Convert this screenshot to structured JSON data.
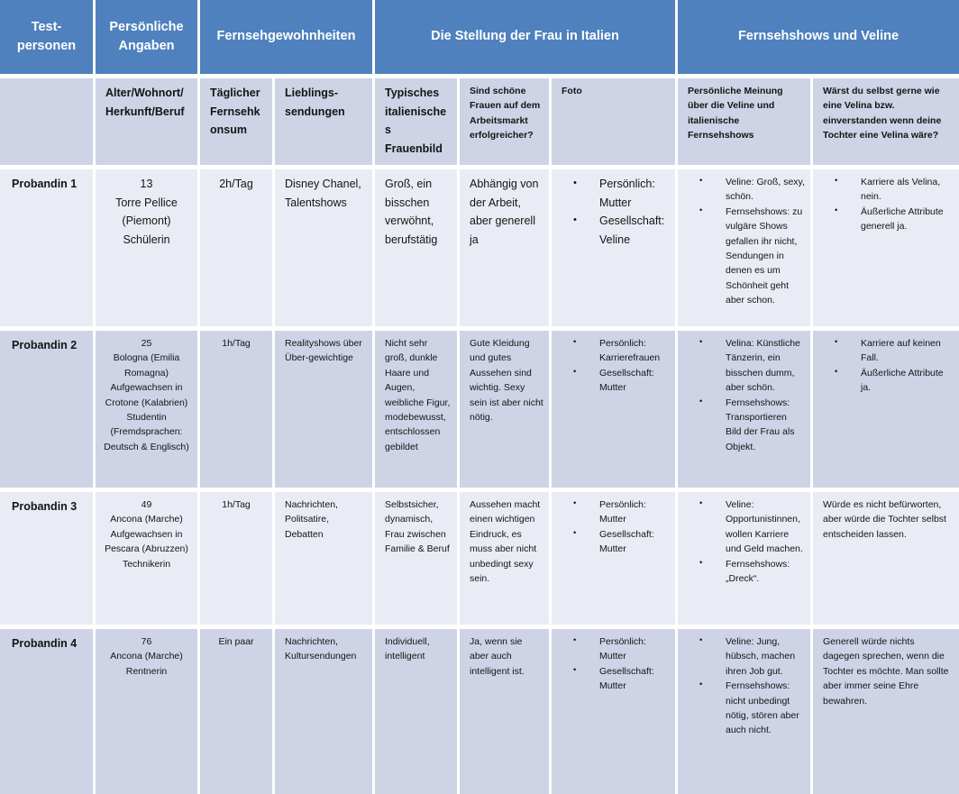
{
  "colors": {
    "header_bg": "#4E81BD",
    "header_text": "#FFFFFF",
    "band_dark": "#CED4E6",
    "band_light": "#E9ECF4",
    "body_text": "#141414",
    "gutter": "#FFFFFF"
  },
  "table": {
    "header_groups": [
      {
        "label": "Test-personen",
        "span": 1
      },
      {
        "label": "Persönliche Angaben",
        "span": 1
      },
      {
        "label": "Fernsehgewohnheiten",
        "span": 2
      },
      {
        "label": "Die Stellung der Frau in Italien",
        "span": 3
      },
      {
        "label": "Fernsehshows und Veline",
        "span": 2
      }
    ],
    "subheaders": [
      "",
      "Alter/Wohnort/ Herkunft/Beruf",
      "Täglicher Fernsehkonsum",
      "Lieblings-sendungen",
      "Typisches italienisches Frauenbild",
      "Sind schöne Frauen auf dem Arbeitsmarkt erfolgreicher?",
      "Foto",
      "Persönliche Meinung über die Veline und italienische Fernsehshows",
      "Wärst du selbst gerne wie eine Velina bzw. einverstanden wenn deine Tochter eine Velina wäre?"
    ],
    "rows": [
      {
        "name": "Probandin 1",
        "personal": "13\nTorre Pellice (Piemont)\nSchülerin",
        "tv_daily": "2h/Tag",
        "favorites": "Disney Chanel, Talentshows",
        "frauenbild": "Groß, ein bisschen verwöhnt, berufstätig",
        "arbeitsmarkt": "Abhängig von der Arbeit, aber generell ja",
        "foto": [
          "Persönlich: Mutter",
          "Gesellschaft: Veline"
        ],
        "meinung": [
          "Veline: Groß, sexy, schön.",
          "Fernsehshows: zu vulgäre Shows gefallen ihr nicht, Sendungen in denen es um Schönheit geht aber schon."
        ],
        "velina": [
          "Karriere als Velina, nein.",
          "Äußerliche Attribute generell ja."
        ]
      },
      {
        "name": "Probandin 2",
        "personal": "25\nBologna (Emilia Romagna)\nAufgewachsen in Crotone (Kalabrien)\nStudentin (Fremdsprachen: Deutsch & Englisch)",
        "tv_daily": "1h/Tag",
        "favorites": "Realityshows über Über-gewichtige",
        "frauenbild": "Nicht sehr groß, dunkle Haare und Augen, weibliche Figur, modebewusst, entschlossen gebildet",
        "arbeitsmarkt": "Gute Kleidung und gutes Aussehen sind wichtig. Sexy sein ist aber nicht nötig.",
        "foto": [
          "Persönlich: Karrierefrauen",
          "Gesellschaft: Mutter"
        ],
        "meinung": [
          "Velina: Künstliche Tänzerin, ein bisschen dumm, aber schön.",
          "Fernsehshows: Transportieren Bild der Frau als Objekt."
        ],
        "velina": [
          "Karriere auf keinen Fall.",
          "Äußerliche Attribute ja."
        ]
      },
      {
        "name": "Probandin 3",
        "personal": "49\nAncona (Marche)\nAufgewachsen in Pescara (Abruzzen)\nTechnikerin",
        "tv_daily": "1h/Tag",
        "favorites": "Nachrichten, Politsatire, Debatten",
        "frauenbild": "Selbstsicher, dynamisch, Frau zwischen Familie & Beruf",
        "arbeitsmarkt": "Aussehen macht einen wichtigen Eindruck, es muss aber nicht unbedingt sexy sein.",
        "foto": [
          "Persönlich: Mutter",
          "Gesellschaft: Mutter"
        ],
        "meinung": [
          "Veline: Opportunistinnen, wollen Karriere und Geld machen.",
          "Fernsehshows: „Dreck“."
        ],
        "velina": "Würde es nicht befürworten, aber würde die Tochter selbst entscheiden lassen."
      },
      {
        "name": "Probandin 4",
        "personal": "76\nAncona (Marche)\nRentnerin",
        "tv_daily": "Ein paar",
        "favorites": "Nachrichten, Kultursendungen",
        "frauenbild": "Individuell, intelligent",
        "arbeitsmarkt": "Ja, wenn sie aber auch intelligent ist.",
        "foto": [
          "Persönlich: Mutter",
          "Gesellschaft: Mutter"
        ],
        "meinung": [
          "Veline: Jung, hübsch, machen ihren Job gut.",
          "Fernsehshows: nicht unbedingt nötig, stören aber auch nicht."
        ],
        "velina": "Generell würde nichts dagegen sprechen, wenn die Tochter es möchte. Man sollte aber immer seine Ehre bewahren."
      }
    ]
  }
}
